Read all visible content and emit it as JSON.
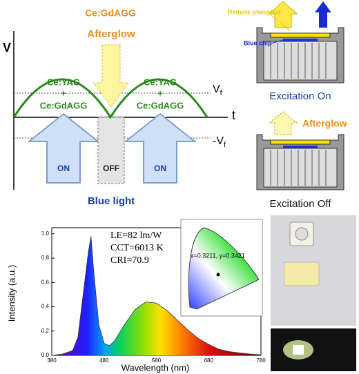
{
  "waveform": {
    "y_label": "V",
    "x_label": "t",
    "vf": {
      "main": "V",
      "sub": "f"
    },
    "neg_vf": {
      "main": "-V",
      "sub": "f"
    },
    "phosphor_left": [
      "Ce:YAG",
      "+",
      "Ce:GdAGG"
    ],
    "phosphor_right": [
      "Ce:YAG",
      "+",
      "Ce:GdAGG"
    ],
    "top_label": "Ce:GdAGG",
    "afterglow": "Afterglow",
    "arrows": [
      "ON",
      "OFF",
      "ON"
    ],
    "caption": "Blue light"
  },
  "device_on": {
    "remote_phosphor": "Remote phosphor",
    "blue_chip": "Blue chip",
    "caption": "Excitation On"
  },
  "device_off": {
    "afterglow": "Afterglow",
    "caption": "Excitation Off"
  },
  "chromaticity": {
    "point": "x=0.3211, y=0.3421"
  },
  "chart_data": {
    "type": "line",
    "xlabel": "Wavelength (nm)",
    "ylabel": "Intensity (a.u.)",
    "annotations": [
      "LE=82 lm/W",
      "CCT=6013 K",
      "CRI=70.9"
    ],
    "x": [
      380,
      400,
      420,
      430,
      440,
      450,
      455,
      460,
      470,
      480,
      490,
      500,
      520,
      540,
      560,
      580,
      600,
      620,
      640,
      660,
      680,
      700,
      720,
      740,
      760,
      780
    ],
    "values": [
      0,
      0.01,
      0.04,
      0.15,
      0.5,
      0.85,
      0.98,
      0.7,
      0.25,
      0.1,
      0.08,
      0.12,
      0.26,
      0.38,
      0.44,
      0.43,
      0.37,
      0.29,
      0.21,
      0.14,
      0.09,
      0.05,
      0.03,
      0.02,
      0.01,
      0.005
    ],
    "xlim": [
      380,
      780
    ],
    "xticks": [
      380,
      480,
      580,
      680,
      780
    ],
    "ylim": [
      0,
      1.05
    ],
    "yticks": [
      {
        "value": 0,
        "label": "0.0"
      },
      0.2,
      0.4,
      0.6,
      0.8,
      {
        "value": 1,
        "label": "1.0"
      }
    ]
  }
}
